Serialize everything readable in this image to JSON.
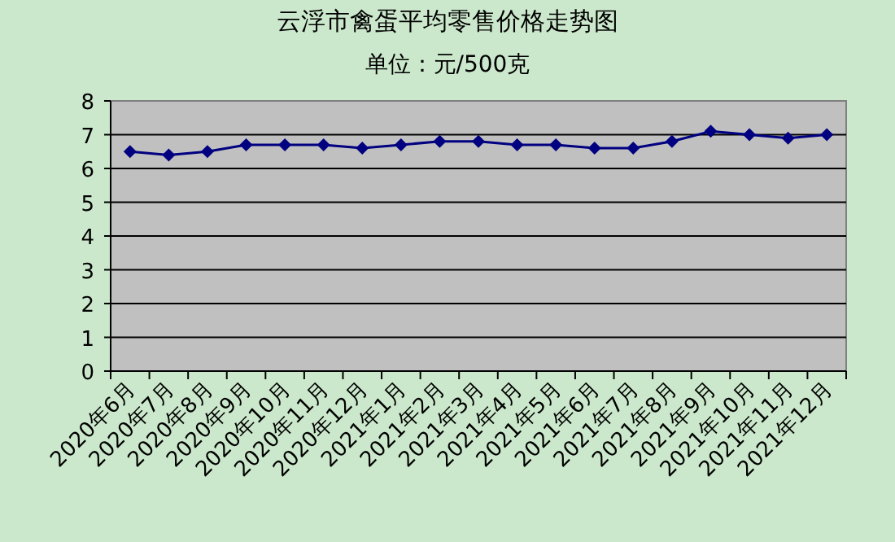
{
  "chart_data": {
    "type": "line",
    "title": "云浮市禽蛋平均零售价格走势图",
    "subtitle": "单位：元/500克",
    "categories": [
      "2020年6月",
      "2020年7月",
      "2020年8月",
      "2020年9月",
      "2020年10月",
      "2020年11月",
      "2020年12月",
      "2021年1月",
      "2021年2月",
      "2021年3月",
      "2021年4月",
      "2021年5月",
      "2021年6月",
      "2021年7月",
      "2021年8月",
      "2021年9月",
      "2021年10月",
      "2021年11月",
      "2021年12月"
    ],
    "series": [
      {
        "color": "#000080",
        "values": [
          6.5,
          6.4,
          6.5,
          6.7,
          6.7,
          6.7,
          6.6,
          6.7,
          6.8,
          6.8,
          6.7,
          6.7,
          6.6,
          6.6,
          6.8,
          7.1,
          7.0,
          6.9,
          7.0
        ]
      }
    ],
    "ylim": [
      0,
      8
    ],
    "yticks": [
      0,
      1,
      2,
      3,
      4,
      5,
      6,
      7,
      8
    ],
    "grid": "y",
    "marker": "diamond",
    "line_style": "solid"
  }
}
